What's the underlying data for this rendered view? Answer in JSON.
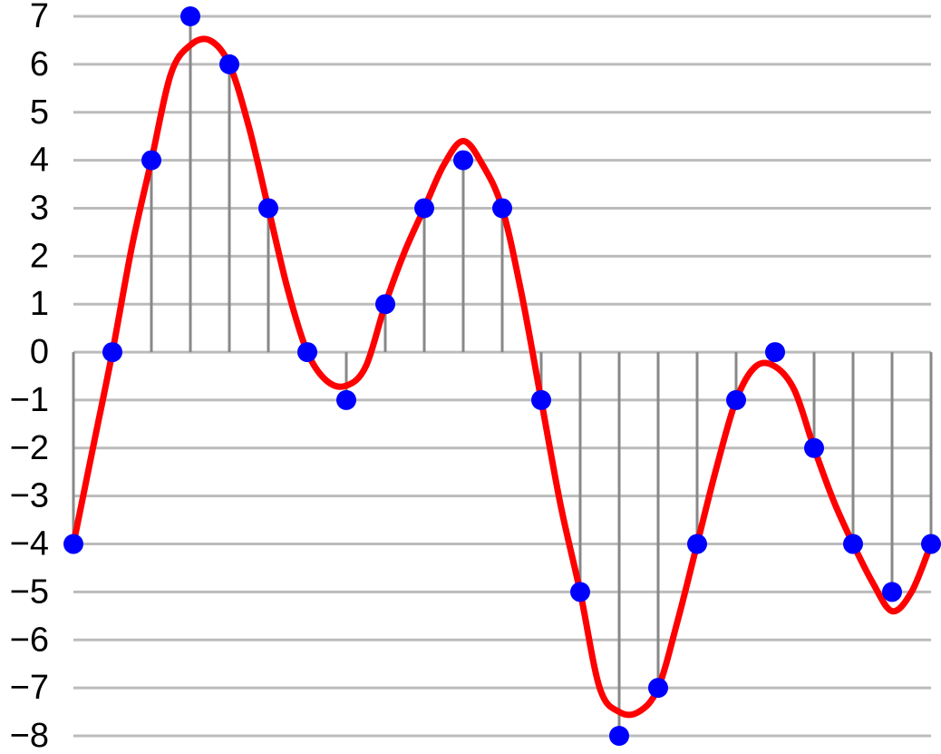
{
  "chart_data": {
    "type": "stem",
    "ylim": [
      -8,
      7
    ],
    "yticks": [
      {
        "value": -8,
        "label": "−8"
      },
      {
        "value": -7,
        "label": "−7"
      },
      {
        "value": -6,
        "label": "−6"
      },
      {
        "value": -5,
        "label": "−5"
      },
      {
        "value": -4,
        "label": "−4"
      },
      {
        "value": -3,
        "label": "−3"
      },
      {
        "value": -2,
        "label": "−2"
      },
      {
        "value": -1,
        "label": "−1"
      },
      0,
      1,
      2,
      3,
      4,
      5,
      6,
      7
    ],
    "xlim": [
      0,
      22
    ],
    "grid": true,
    "series": [
      {
        "style": "line",
        "color": "#ff0000",
        "x": [
          0,
          0.5,
          1,
          1.5,
          2,
          2.5,
          3,
          3.5,
          4,
          4.5,
          5,
          5.5,
          6,
          6.5,
          7,
          7.5,
          8,
          8.5,
          9,
          9.5,
          10,
          10.5,
          11,
          11.5,
          12,
          12.5,
          13,
          13.5,
          14,
          14.5,
          15,
          15.5,
          16,
          16.5,
          17,
          17.5,
          18,
          18.5,
          19,
          19.5,
          20,
          20.5,
          21,
          21.5,
          22
        ],
        "values": [
          -4,
          -2,
          0,
          2.2,
          4,
          5.8,
          6.4,
          6.5,
          6,
          4.7,
          3,
          1.3,
          0,
          -0.6,
          -0.7,
          -0.3,
          1,
          2.1,
          3,
          3.9,
          4.4,
          3.9,
          3,
          1.2,
          -1,
          -3.2,
          -5,
          -7,
          -7.5,
          -7.5,
          -7,
          -5.6,
          -4,
          -2.4,
          -1,
          -0.3,
          -0.3,
          -0.8,
          -2,
          -3.1,
          -4,
          -4.8,
          -5.4,
          -5,
          -4
        ]
      },
      {
        "style": "stem",
        "color": "#0000ff",
        "x": [
          0,
          1,
          2,
          3,
          4,
          5,
          6,
          7,
          8,
          9,
          10,
          11,
          12,
          13,
          14,
          15,
          16,
          17,
          18,
          19,
          20,
          21,
          22
        ],
        "values": [
          -4,
          0,
          4,
          7,
          6,
          3,
          0,
          -1,
          1,
          3,
          4,
          3,
          -1,
          -5,
          -8,
          -7,
          -4,
          -1,
          0,
          -2,
          -4,
          -5,
          -4
        ]
      }
    ]
  }
}
